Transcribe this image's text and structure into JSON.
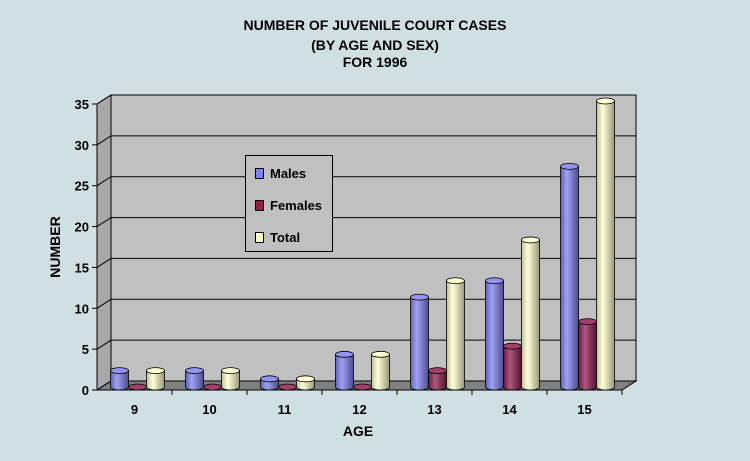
{
  "chart_data": {
    "type": "bar",
    "title_lines": [
      "NUMBER OF JUVENILE COURT CASES",
      "(BY AGE AND SEX)",
      "FOR 1996"
    ],
    "xlabel": "AGE",
    "ylabel": "NUMBER",
    "categories": [
      "9",
      "10",
      "11",
      "12",
      "13",
      "14",
      "15"
    ],
    "series": [
      {
        "name": "Males",
        "color": "#8080f0",
        "values": [
          2,
          2,
          1,
          4,
          11,
          13,
          27
        ]
      },
      {
        "name": "Females",
        "color": "#902050",
        "values": [
          0,
          0,
          0,
          0,
          2,
          5,
          8
        ]
      },
      {
        "name": "Total",
        "color": "#ffffcc",
        "values": [
          2,
          2,
          1,
          4,
          13,
          18,
          35
        ]
      }
    ],
    "ylim": [
      0,
      35
    ],
    "yticks": [
      "0",
      "5",
      "10",
      "15",
      "20",
      "25",
      "30",
      "35"
    ],
    "grid": true,
    "legend_position": "inside-left"
  }
}
